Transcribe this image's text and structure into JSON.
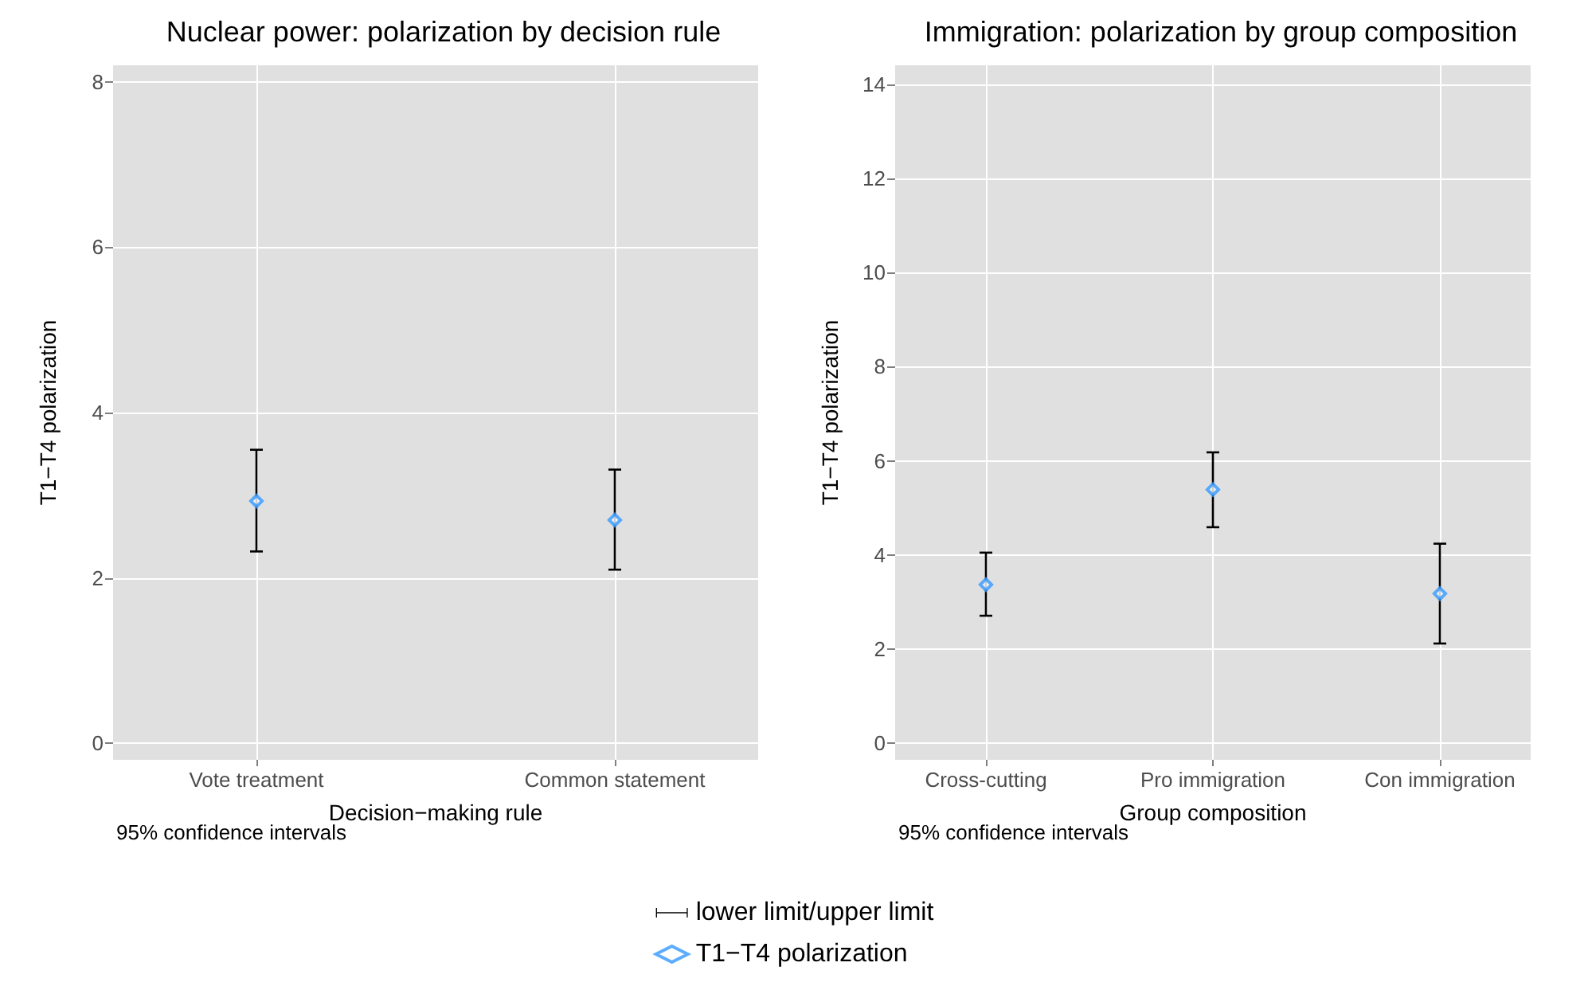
{
  "chart_data": [
    {
      "type": "scatter",
      "title": "Nuclear power: polarization by decision rule",
      "xlabel": "Decision−making rule",
      "ylabel": "T1−T4 polarization",
      "annotations": [
        "95% confidence intervals",
        "lower limit/upper limit"
      ],
      "categories": [
        "Vote treatment",
        "Common statement"
      ],
      "series": [
        {
          "name": "T1−T4 polarization",
          "color": "#3399ff",
          "values": [
            2.93,
            2.7
          ],
          "errors": [
            [
              2.32,
              3.55
            ],
            [
              2.1,
              3.31
            ]
          ]
        }
      ],
      "ylim": [
        -0.2,
        8.2
      ],
      "yticks": [
        0,
        2,
        4,
        6,
        8
      ],
      "grid": true,
      "marker": "diamond",
      "legend": "bottom"
    },
    {
      "type": "scatter",
      "title": "Immigration: polarization by group composition",
      "xlabel": "Group composition",
      "ylabel": "T1−T4 polarization",
      "annotations": [
        "95% confidence intervals"
      ],
      "categories": [
        "Cross-cutting",
        "Pro immigration",
        "Con immigration"
      ],
      "series": [
        {
          "color": "#3399ff",
          "values": [
            3.37,
            5.39,
            3.18
          ],
          "errors": [
            [
              2.71,
              4.05
            ],
            [
              4.59,
              6.18
            ],
            [
              2.12,
              4.24
            ]
          ]
        }
      ],
      "ylim": [
        -0.35,
        14.4
      ],
      "yticks": [
        0,
        2,
        4,
        6,
        8,
        10,
        12,
        14
      ],
      "grid": true,
      "marker": "diamond"
    }
  ]
}
